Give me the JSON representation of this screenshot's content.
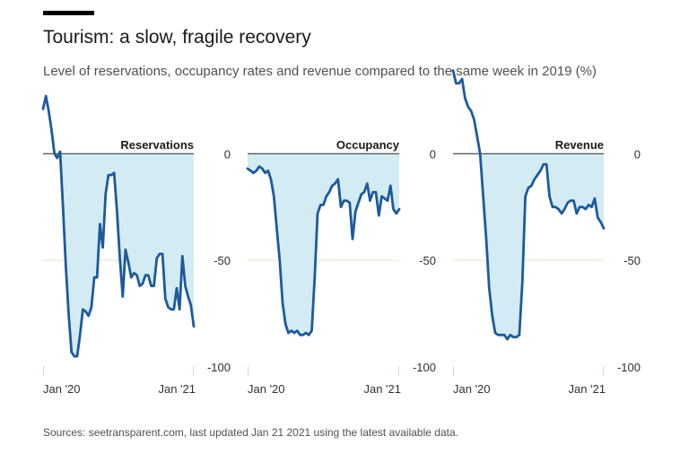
{
  "header": {
    "title": "Tourism: a slow, fragile recovery",
    "subtitle": "Level of reservations, occupancy rates and revenue compared to the same week in 2019 (%)"
  },
  "footer": {
    "source": "Sources: seetransparent.com, last updated Jan 21 2021 using the latest available data."
  },
  "colors": {
    "line": "#1d5a9e",
    "fill": "#d3ecf3",
    "zero_line": "#3a3a3a",
    "minus50_line": "#f0ddd2",
    "axis_tick": "#e4d3c8"
  },
  "chart_data": [
    {
      "type": "area",
      "title": "Reservations",
      "x_start_label": "Jan '20",
      "x_end_label": "Jan '21",
      "y_ticks": [
        "0",
        "-50",
        "-100"
      ],
      "ylim": [
        -100,
        30
      ],
      "y": [
        21,
        27,
        20,
        11,
        0,
        -2,
        1,
        -25,
        -53,
        -75,
        -93,
        -95,
        -95,
        -85,
        -73,
        -74,
        -76,
        -72,
        -58,
        -58,
        -33,
        -44,
        -19,
        -10,
        -10,
        -9,
        -27,
        -49,
        -67,
        -45,
        -51,
        -58,
        -56,
        -57,
        -62,
        -61,
        -57,
        -57,
        -62,
        -62,
        -49,
        -47,
        -47,
        -68,
        -72,
        -73,
        -73,
        -63,
        -73,
        -48,
        -62,
        -67,
        -71,
        -81
      ]
    },
    {
      "type": "area",
      "title": "Occupancy",
      "x_start_label": "Jan '20",
      "x_end_label": "Jan '21",
      "y_ticks": [
        "0",
        "-50",
        "-100"
      ],
      "ylim": [
        -100,
        30
      ],
      "y": [
        -7,
        -8,
        -9,
        -8,
        -6,
        -7,
        -9,
        -8,
        -12,
        -20,
        -35,
        -50,
        -70,
        -80,
        -84,
        -83,
        -84,
        -83,
        -85,
        -85,
        -84,
        -85,
        -83,
        -58,
        -28,
        -24,
        -24,
        -20,
        -18,
        -15,
        -14,
        -12,
        -25,
        -22,
        -22,
        -23,
        -40,
        -27,
        -23,
        -19,
        -18,
        -14,
        -22,
        -18,
        -18,
        -29,
        -20,
        -21,
        -22,
        -15,
        -26,
        -28,
        -26
      ]
    },
    {
      "type": "area",
      "title": "Revenue",
      "x_start_label": "Jan '20",
      "x_end_label": "Jan '21",
      "y_ticks": [
        "0",
        "-50",
        "-100"
      ],
      "ylim": [
        -100,
        30
      ],
      "y": [
        39,
        33,
        33,
        35,
        26,
        22,
        20,
        16,
        8,
        0,
        -20,
        -40,
        -63,
        -76,
        -84,
        -85,
        -85,
        -85,
        -87,
        -85,
        -86,
        -86,
        -85,
        -60,
        -20,
        -16,
        -15,
        -12,
        -10,
        -8,
        -5,
        -5,
        -20,
        -25,
        -25,
        -26,
        -28,
        -26,
        -23,
        -22,
        -22,
        -28,
        -25,
        -25,
        -26,
        -24,
        -25,
        -21,
        -30,
        -32,
        -35
      ]
    }
  ]
}
